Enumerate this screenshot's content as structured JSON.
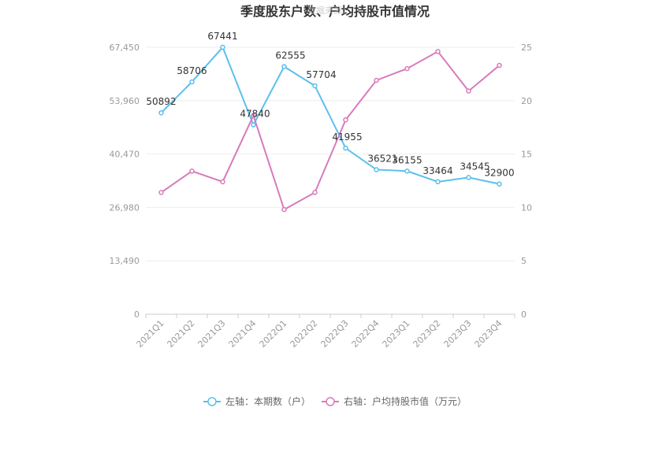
{
  "chart_data": {
    "type": "line",
    "title": "季度股东户数、户均持股市值情况",
    "watermark": "数据来源：",
    "categories": [
      "2021Q1",
      "2021Q2",
      "2021Q3",
      "2021Q4",
      "2022Q1",
      "2022Q2",
      "2022Q3",
      "2022Q4",
      "2023Q1",
      "2023Q2",
      "2023Q3",
      "2023Q4"
    ],
    "left_axis": {
      "ticks": [
        "0",
        "13,490",
        "26,980",
        "40,470",
        "53,960",
        "67,450"
      ],
      "ylim": [
        0,
        67450
      ]
    },
    "right_axis": {
      "ticks": [
        "0",
        "5",
        "10",
        "15",
        "20",
        "25"
      ],
      "ylim": [
        0,
        25
      ]
    },
    "series": [
      {
        "name": "左轴：本期数（户）",
        "axis": "left",
        "color": "#5bc0eb",
        "values": [
          50892,
          58706,
          67441,
          47840,
          62555,
          57704,
          41955,
          36521,
          36155,
          33464,
          34545,
          32900
        ],
        "labels": [
          "50892",
          "58706",
          "67441",
          "47840",
          "62555",
          "57704",
          "41955",
          "36521",
          "36155",
          "33464",
          "34545",
          "32900"
        ]
      },
      {
        "name": "右轴：户均持股市值（万元）",
        "axis": "right",
        "color": "#d77bbd",
        "values": [
          11.4,
          13.4,
          12.4,
          18.6,
          9.8,
          11.4,
          18.2,
          21.9,
          23.0,
          24.6,
          20.9,
          23.3
        ]
      }
    ]
  }
}
